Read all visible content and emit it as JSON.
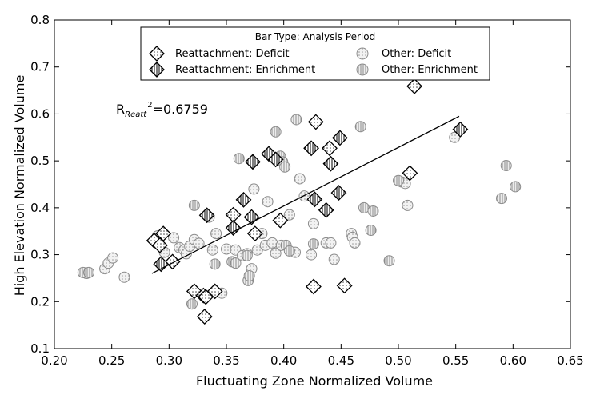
{
  "colors": {
    "marker_edge_other": "#8c8c8c",
    "marker_fill_other": "#ececec",
    "marker_edge_reatt": "#000000",
    "marker_fill_reatt": "#ffffff",
    "trend_line": "#000000"
  },
  "chart_data": {
    "type": "scatter",
    "xlabel": "Fluctuating Zone Normalized Volume",
    "ylabel": "High Elevation Normalized Volume",
    "xlim": [
      0.2,
      0.65
    ],
    "ylim": [
      0.1,
      0.8
    ],
    "xticks": [
      "0.20",
      "0.25",
      "0.30",
      "0.35",
      "0.40",
      "0.45",
      "0.50",
      "0.55",
      "0.60",
      "0.65"
    ],
    "yticks": [
      "0.1",
      "0.2",
      "0.3",
      "0.4",
      "0.5",
      "0.6",
      "0.7",
      "0.8"
    ],
    "grid": false,
    "legend": {
      "title": "Bar Type: Analysis Period",
      "placement": "top-center",
      "entries": [
        "Reattachment: Deficit",
        "Reattachment: Enrichment",
        "Other: Deficit",
        "Other: Enrichment"
      ]
    },
    "annotation": {
      "base": "R",
      "subscript": "Reatt",
      "superscript": "2",
      "value": "=0.6759"
    },
    "trend_line": {
      "x": [
        0.285,
        0.553
      ],
      "y": [
        0.26,
        0.595
      ]
    },
    "series": [
      {
        "name": "Reattachment: Deficit",
        "marker": "diamond",
        "hatch": "dots",
        "x": [
          0.287,
          0.295,
          0.292,
          0.303,
          0.322,
          0.33,
          0.332,
          0.331,
          0.34,
          0.356,
          0.375,
          0.397,
          0.426,
          0.428,
          0.44,
          0.453,
          0.51,
          0.514
        ],
        "y": [
          0.33,
          0.345,
          0.32,
          0.285,
          0.222,
          0.213,
          0.21,
          0.168,
          0.222,
          0.385,
          0.345,
          0.373,
          0.232,
          0.583,
          0.527,
          0.234,
          0.474,
          0.659
        ]
      },
      {
        "name": "Reattachment: Enrichment",
        "marker": "diamond",
        "hatch": "vertical",
        "x": [
          0.293,
          0.333,
          0.356,
          0.365,
          0.372,
          0.373,
          0.387,
          0.393,
          0.424,
          0.427,
          0.437,
          0.441,
          0.448,
          0.449,
          0.554
        ],
        "y": [
          0.28,
          0.384,
          0.357,
          0.417,
          0.38,
          0.498,
          0.515,
          0.503,
          0.527,
          0.418,
          0.395,
          0.494,
          0.432,
          0.549,
          0.567
        ]
      },
      {
        "name": "Other: Deficit",
        "marker": "circle",
        "hatch": "dots",
        "x": [
          0.228,
          0.244,
          0.247,
          0.251,
          0.261,
          0.29,
          0.296,
          0.304,
          0.309,
          0.313,
          0.315,
          0.318,
          0.322,
          0.326,
          0.33,
          0.335,
          0.338,
          0.341,
          0.346,
          0.35,
          0.358,
          0.364,
          0.368,
          0.372,
          0.374,
          0.377,
          0.381,
          0.384,
          0.386,
          0.39,
          0.393,
          0.398,
          0.405,
          0.41,
          0.414,
          0.418,
          0.424,
          0.426,
          0.437,
          0.441,
          0.444,
          0.459,
          0.46,
          0.462,
          0.503,
          0.506,
          0.508,
          0.549
        ],
        "y": [
          0.26,
          0.27,
          0.282,
          0.293,
          0.252,
          0.34,
          0.305,
          0.336,
          0.315,
          0.31,
          0.302,
          0.318,
          0.332,
          0.324,
          0.212,
          0.38,
          0.31,
          0.345,
          0.218,
          0.312,
          0.31,
          0.298,
          0.302,
          0.27,
          0.44,
          0.31,
          0.345,
          0.32,
          0.413,
          0.325,
          0.303,
          0.32,
          0.385,
          0.305,
          0.462,
          0.425,
          0.3,
          0.366,
          0.325,
          0.325,
          0.29,
          0.345,
          0.337,
          0.325,
          0.455,
          0.452,
          0.405,
          0.55
        ]
      },
      {
        "name": "Other: Enrichment",
        "marker": "circle",
        "hatch": "vertical",
        "x": [
          0.225,
          0.23,
          0.32,
          0.322,
          0.34,
          0.355,
          0.358,
          0.361,
          0.368,
          0.369,
          0.37,
          0.393,
          0.397,
          0.399,
          0.401,
          0.402,
          0.405,
          0.411,
          0.426,
          0.467,
          0.47,
          0.476,
          0.478,
          0.492,
          0.5,
          0.59,
          0.594,
          0.602
        ],
        "y": [
          0.262,
          0.262,
          0.195,
          0.405,
          0.28,
          0.285,
          0.282,
          0.505,
          0.298,
          0.245,
          0.255,
          0.562,
          0.51,
          0.498,
          0.487,
          0.32,
          0.308,
          0.588,
          0.323,
          0.573,
          0.4,
          0.352,
          0.393,
          0.287,
          0.458,
          0.42,
          0.49,
          0.445
        ]
      }
    ]
  }
}
